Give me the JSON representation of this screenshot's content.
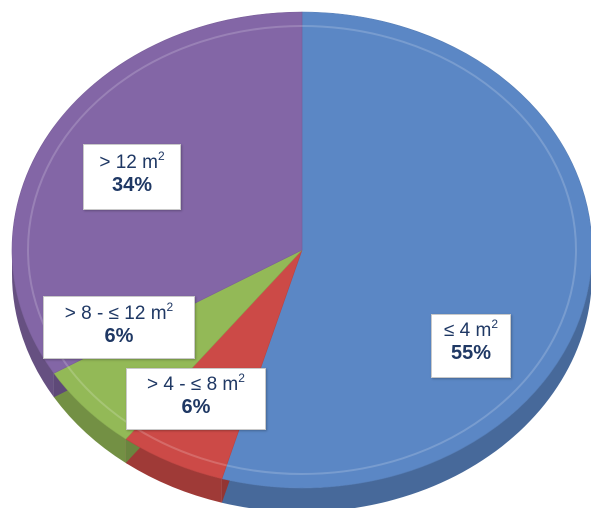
{
  "chart_data": {
    "type": "pie",
    "style": "3d",
    "slices": [
      {
        "label": "≤ 4 m",
        "sup": "2",
        "value": 55,
        "display": "55%",
        "color": "#5b87c5"
      },
      {
        "label": "> 4 - ≤ 8 m",
        "sup": "2",
        "value": 6,
        "display": "6%",
        "color": "#cc4a47"
      },
      {
        "label": "> 8 - ≤ 12 m",
        "sup": "2",
        "value": 6,
        "display": "6%",
        "color": "#93b957"
      },
      {
        "label": "> 12 m",
        "sup": "2",
        "value": 34,
        "display": "34%",
        "color": "#8366a6"
      }
    ]
  }
}
